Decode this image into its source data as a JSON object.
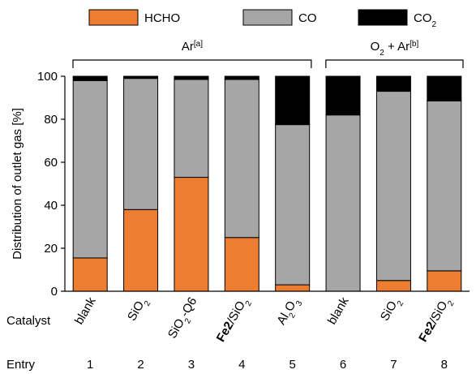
{
  "chart_data": {
    "type": "bar",
    "stacked": true,
    "ylabel": "Distribution of outlet gas [%]",
    "ylim": [
      0,
      100
    ],
    "yticks": [
      0,
      20,
      40,
      60,
      80,
      100
    ],
    "grid": false,
    "legend_position": "top",
    "legend": [
      {
        "label": "HCHO",
        "color": "#ED7D31"
      },
      {
        "label": "CO",
        "color": "#A6A6A6"
      },
      {
        "label": "CO",
        "sub": "2",
        "color": "#000000"
      }
    ],
    "groups": [
      {
        "label": "Ar",
        "sup": "[a]",
        "first": 0,
        "last": 4
      },
      {
        "label": "O",
        "sub": "2",
        "mid": " + Ar",
        "sup": "[b]",
        "first": 5,
        "last": 7
      }
    ],
    "row_labels": {
      "catalyst": "Catalyst",
      "entry": "Entry"
    },
    "categories": [
      {
        "entry": "1",
        "parts": [
          {
            "t": "blank"
          }
        ]
      },
      {
        "entry": "2",
        "parts": [
          {
            "t": "SiO"
          },
          {
            "t": "2",
            "sub": true
          }
        ]
      },
      {
        "entry": "3",
        "parts": [
          {
            "t": "SiO"
          },
          {
            "t": "2",
            "sub": true
          },
          {
            "t": "-Q6"
          }
        ]
      },
      {
        "entry": "4",
        "parts": [
          {
            "t": "Fe2",
            "bold": true
          },
          {
            "t": "/SiO"
          },
          {
            "t": "2",
            "sub": true
          }
        ]
      },
      {
        "entry": "5",
        "parts": [
          {
            "t": "Al"
          },
          {
            "t": "2",
            "sub": true
          },
          {
            "t": "O"
          },
          {
            "t": "3",
            "sub": true
          }
        ]
      },
      {
        "entry": "6",
        "parts": [
          {
            "t": "blank"
          }
        ]
      },
      {
        "entry": "7",
        "parts": [
          {
            "t": "SiO"
          },
          {
            "t": "2",
            "sub": true
          }
        ]
      },
      {
        "entry": "8",
        "parts": [
          {
            "t": "Fe2",
            "bold": true
          },
          {
            "t": "/SiO"
          },
          {
            "t": "2",
            "sub": true
          }
        ]
      }
    ],
    "series": [
      {
        "name": "HCHO",
        "color": "#ED7D31",
        "values": [
          15.5,
          38,
          53,
          25,
          3,
          0,
          5,
          9.5
        ]
      },
      {
        "name": "CO",
        "color": "#A6A6A6",
        "values": [
          82.5,
          61,
          45.5,
          73.5,
          74.5,
          82,
          88,
          79
        ]
      },
      {
        "name": "CO2",
        "color": "#000000",
        "values": [
          2,
          1,
          1.5,
          1.5,
          22.5,
          18,
          7,
          11.5
        ]
      }
    ]
  }
}
